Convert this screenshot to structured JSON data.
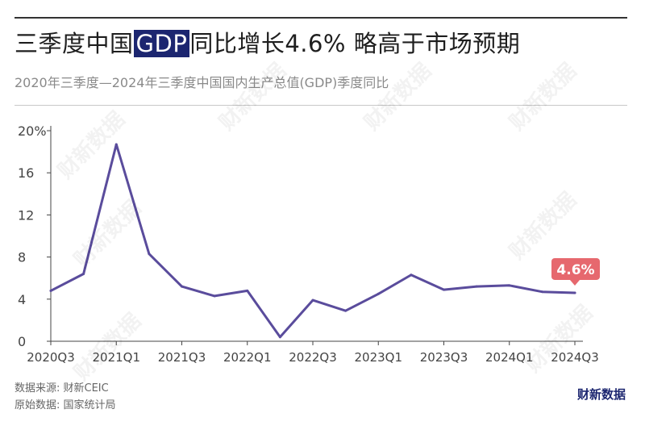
{
  "header": {
    "title_pre": "三季度中国",
    "title_highlight": "GDP",
    "title_post": "同比增长4.6% 略高于市场预期",
    "subtitle": "2020年三季度—2024年三季度中国国内生产总值(GDP)季度同比"
  },
  "footer": {
    "source": "数据来源: 财新CEIC",
    "raw_data": "原始数据: 国家统计局",
    "brand": "财新数据",
    "watermark": "财新数据"
  },
  "colors": {
    "line": "#5a4c9c",
    "callout": "#e6686e",
    "axis": "#555555",
    "grid": "#e0e0e0",
    "highlight": "#1c2670"
  },
  "chart_data": {
    "type": "line",
    "title": "",
    "xlabel": "",
    "ylabel": "",
    "ylim": [
      0,
      20
    ],
    "y_ticks": [
      "0",
      "4",
      "8",
      "12",
      "16",
      "20%"
    ],
    "x_tick_labels": [
      "2020Q3",
      "2021Q1",
      "2021Q3",
      "2022Q1",
      "2022Q3",
      "2023Q1",
      "2023Q3",
      "2024Q1",
      "2024Q3"
    ],
    "x": [
      "2020Q3",
      "2020Q4",
      "2021Q1",
      "2021Q2",
      "2021Q3",
      "2021Q4",
      "2022Q1",
      "2022Q2",
      "2022Q3",
      "2022Q4",
      "2023Q1",
      "2023Q2",
      "2023Q3",
      "2023Q4",
      "2024Q1",
      "2024Q2",
      "2024Q3"
    ],
    "series": [
      {
        "values": [
          4.8,
          6.4,
          18.7,
          8.3,
          5.2,
          4.3,
          4.8,
          0.4,
          3.9,
          2.9,
          4.5,
          6.3,
          4.9,
          5.2,
          5.3,
          4.7,
          4.6
        ]
      }
    ],
    "callout": "4.6%",
    "grid": false
  }
}
